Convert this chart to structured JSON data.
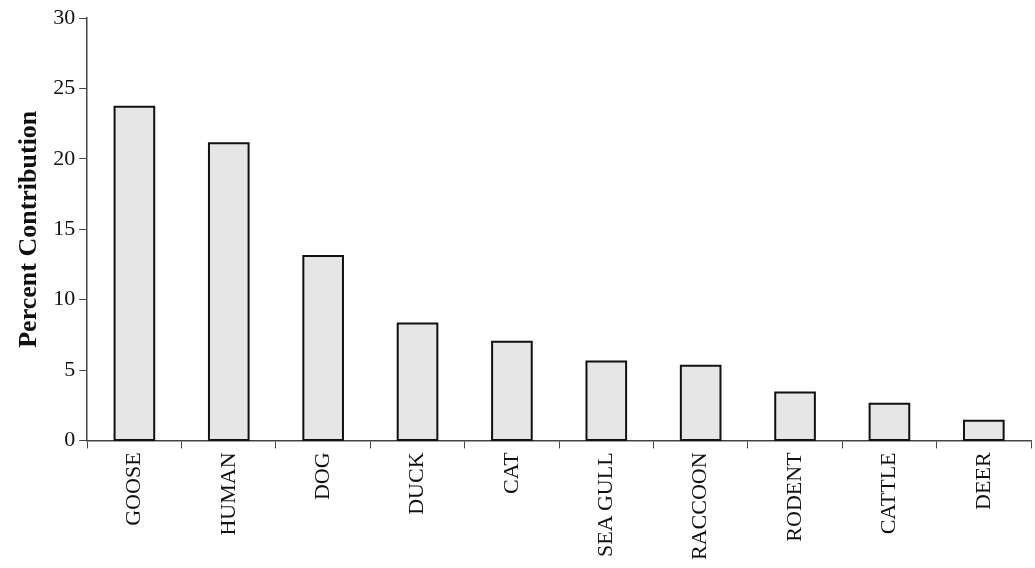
{
  "chart_data": {
    "type": "bar",
    "ylabel": "Percent Contribution",
    "categories": [
      "GOOSE",
      "HUMAN",
      "DOG",
      "DUCK",
      "CAT",
      "SEA GULL",
      "RACCOON",
      "RODENT",
      "CATTLE",
      "DEER"
    ],
    "values": [
      23.7,
      21.1,
      13.1,
      8.3,
      7.0,
      5.6,
      5.3,
      3.4,
      2.6,
      1.4
    ],
    "color": "#e6e6e6",
    "ylim": [
      0,
      30
    ],
    "yticks": [
      0,
      5,
      10,
      15,
      20,
      25,
      30
    ],
    "grid": false,
    "legend": false
  }
}
